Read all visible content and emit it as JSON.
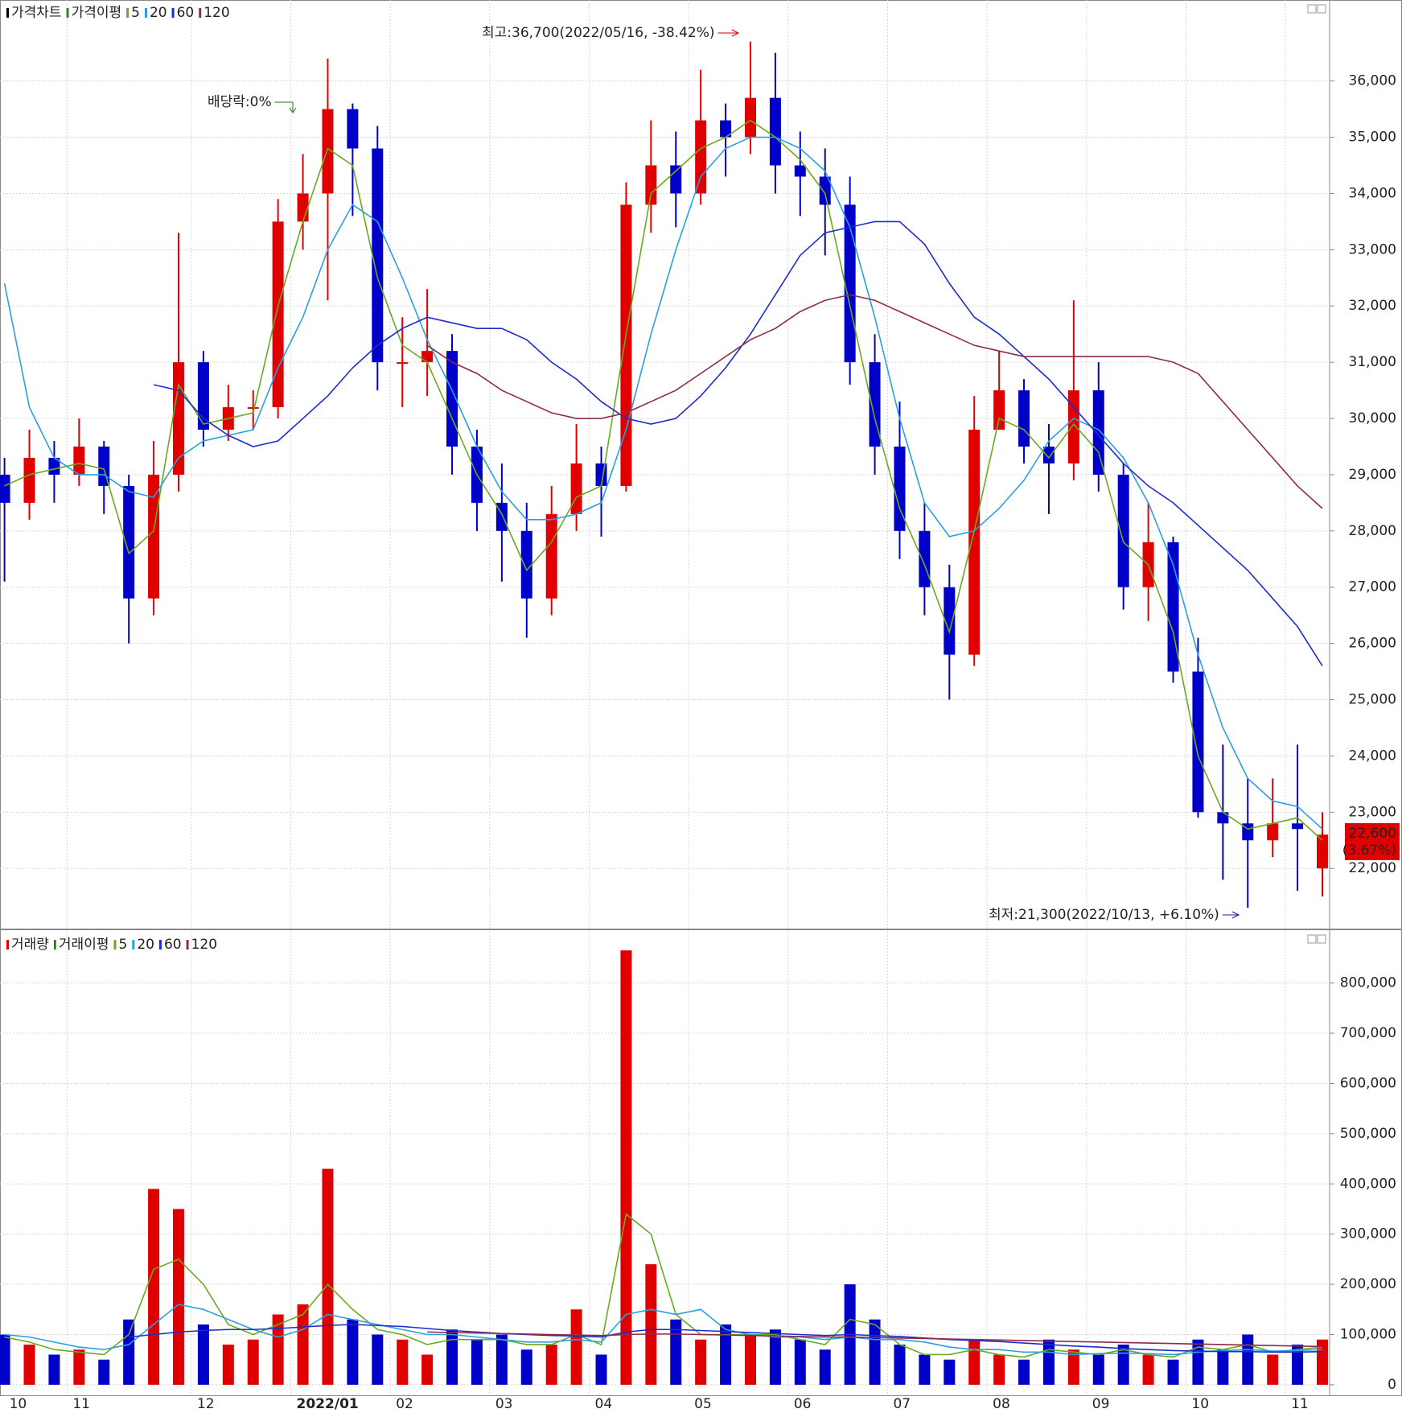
{
  "chart_data": [
    {
      "type": "candlestick",
      "title": "가격차트",
      "ma_title": "가격이평",
      "up_color": "#e00000",
      "down_color": "#0000c8",
      "open": [
        29000,
        28500,
        29300,
        29000,
        29500,
        28800,
        26800,
        29000,
        31000,
        29800,
        30200,
        30200,
        33500,
        34000,
        35500,
        34800,
        31000,
        31000,
        31200,
        29500,
        28500,
        28000,
        26800,
        28300,
        29200,
        28800,
        33800,
        34500,
        34000,
        35300,
        35000,
        35700,
        34500,
        34300,
        33800,
        31000,
        29500,
        28000,
        27000,
        25800,
        29800,
        30500,
        29500,
        29200,
        30500,
        29000,
        27000,
        27800,
        25500,
        23000,
        22800,
        22500,
        22800,
        22000
      ],
      "high": [
        29300,
        29800,
        29600,
        30000,
        29600,
        29000,
        29600,
        33300,
        31200,
        30600,
        30500,
        33900,
        34700,
        36400,
        35600,
        35200,
        31800,
        32300,
        31500,
        29800,
        29200,
        28500,
        28800,
        29900,
        29500,
        34200,
        35300,
        35100,
        36200,
        35600,
        36700,
        36500,
        35100,
        34800,
        34300,
        31500,
        30300,
        28500,
        27400,
        30400,
        31200,
        30700,
        29900,
        32100,
        31000,
        29200,
        28500,
        27900,
        26100,
        24200,
        23600,
        23600,
        24200,
        23000
      ],
      "low": [
        27100,
        28200,
        28500,
        28800,
        28300,
        26000,
        26500,
        28700,
        29500,
        29600,
        29800,
        30000,
        33000,
        32100,
        33600,
        30500,
        30200,
        30400,
        29000,
        28000,
        27100,
        26100,
        26500,
        28000,
        27900,
        28700,
        33300,
        33400,
        33800,
        34300,
        34700,
        34000,
        33600,
        32900,
        30600,
        29000,
        27500,
        26500,
        25000,
        25600,
        29800,
        29200,
        28300,
        28900,
        28700,
        26600,
        26400,
        25300,
        22900,
        21800,
        21300,
        22200,
        21600,
        21500
      ],
      "close": [
        28500,
        29300,
        29000,
        29500,
        28800,
        26800,
        29000,
        31000,
        29800,
        30200,
        30200,
        33500,
        34000,
        35500,
        34800,
        31000,
        31000,
        31200,
        29500,
        28500,
        28000,
        26800,
        28300,
        29200,
        28800,
        33800,
        34500,
        34000,
        35300,
        35000,
        35700,
        34500,
        34300,
        33800,
        31000,
        29500,
        28000,
        27000,
        25800,
        29800,
        30500,
        29500,
        29200,
        30500,
        29000,
        27000,
        27800,
        25500,
        23000,
        22800,
        22500,
        22800,
        22700,
        22600
      ],
      "series": [
        {
          "name": "5",
          "color": "#6aaa1e",
          "values": [
            28800,
            29000,
            29100,
            29200,
            29100,
            27600,
            28000,
            30600,
            29900,
            30000,
            30100,
            32000,
            33500,
            34800,
            34500,
            32500,
            31300,
            31000,
            30000,
            29000,
            28300,
            27300,
            27800,
            28600,
            28800,
            31500,
            34000,
            34400,
            34800,
            35000,
            35300,
            35000,
            34600,
            34000,
            32000,
            30000,
            28400,
            27400,
            26200,
            28000,
            30000,
            29800,
            29300,
            29900,
            29400,
            27800,
            27400,
            26200,
            24000,
            23000,
            22700,
            22800,
            22900,
            22500
          ]
        },
        {
          "name": "20",
          "color": "#2aa0e0",
          "values": [
            32400,
            30200,
            29300,
            29000,
            29000,
            28700,
            28600,
            29300,
            29600,
            29700,
            29800,
            30900,
            31800,
            33000,
            33800,
            33500,
            32500,
            31400,
            30500,
            29500,
            28700,
            28200,
            28200,
            28300,
            28500,
            29800,
            31500,
            33000,
            34300,
            34800,
            35000,
            35000,
            34800,
            34400,
            33400,
            31800,
            30000,
            28500,
            27900,
            28000,
            28400,
            28900,
            29600,
            30000,
            29800,
            29300,
            28500,
            27400,
            25800,
            24500,
            23600,
            23200,
            23100,
            22700
          ]
        },
        {
          "name": "60",
          "color": "#1c2ccc",
          "values": [
            null,
            null,
            null,
            null,
            null,
            null,
            30600,
            30500,
            30000,
            29700,
            29500,
            29600,
            30000,
            30400,
            30900,
            31300,
            31600,
            31800,
            31700,
            31600,
            31600,
            31400,
            31000,
            30700,
            30300,
            30000,
            29900,
            30000,
            30400,
            30900,
            31500,
            32200,
            32900,
            33300,
            33400,
            33500,
            33500,
            33100,
            32400,
            31800,
            31500,
            31100,
            30700,
            30200,
            29700,
            29200,
            28800,
            28500,
            28100,
            27700,
            27300,
            26800,
            26300,
            25600
          ]
        },
        {
          "name": "120",
          "color": "#8b2a4a",
          "values": [
            null,
            null,
            null,
            null,
            null,
            null,
            null,
            null,
            null,
            null,
            null,
            null,
            null,
            null,
            null,
            null,
            null,
            31300,
            31000,
            30800,
            30500,
            30300,
            30100,
            30000,
            30000,
            30100,
            30300,
            30500,
            30800,
            31100,
            31400,
            31600,
            31900,
            32100,
            32200,
            32100,
            31900,
            31700,
            31500,
            31300,
            31200,
            31100,
            31100,
            31100,
            31100,
            31100,
            31100,
            31000,
            30800,
            30300,
            29800,
            29300,
            28800,
            28400
          ]
        }
      ],
      "ylim": [
        20930,
        37440
      ],
      "yticks": [
        {
          "value": 22000,
          "label": "22,000"
        },
        {
          "value": 23000,
          "label": "23,000"
        },
        {
          "value": 24000,
          "label": "24,000"
        },
        {
          "value": 25000,
          "label": "25,000"
        },
        {
          "value": 26000,
          "label": "26,000"
        },
        {
          "value": 27000,
          "label": "27,000"
        },
        {
          "value": 28000,
          "label": "28,000"
        },
        {
          "value": 29000,
          "label": "29,000"
        },
        {
          "value": 30000,
          "label": "30,000"
        },
        {
          "value": 31000,
          "label": "31,000"
        },
        {
          "value": 32000,
          "label": "32,000"
        },
        {
          "value": 33000,
          "label": "33,000"
        },
        {
          "value": 34000,
          "label": "34,000"
        },
        {
          "value": 35000,
          "label": "35,000"
        },
        {
          "value": 36000,
          "label": "36,000"
        }
      ],
      "grid": true,
      "annotations": [
        "최고:36,700(2022/05/16, -38.42%)",
        "배당락:0%",
        "최저:21,300(2022/10/13, +6.10%)"
      ],
      "last_label": "22,600",
      "last_change": "(3.67%)"
    },
    {
      "type": "bar",
      "title": "거래량",
      "ma_title": "거래이평",
      "categories": [
        "10",
        null,
        null,
        "11",
        null,
        null,
        null,
        null,
        "12",
        null,
        null,
        null,
        "2022/01",
        null,
        null,
        null,
        "02",
        null,
        null,
        null,
        "03",
        null,
        null,
        null,
        "04",
        null,
        null,
        null,
        "05",
        null,
        null,
        null,
        "06",
        null,
        null,
        null,
        "07",
        null,
        null,
        null,
        "08",
        null,
        null,
        null,
        "09",
        null,
        null,
        null,
        "10",
        null,
        null,
        null,
        "11",
        null
      ],
      "values": [
        100000,
        80000,
        60000,
        70000,
        50000,
        130000,
        390000,
        350000,
        120000,
        80000,
        90000,
        140000,
        160000,
        430000,
        130000,
        100000,
        90000,
        60000,
        110000,
        90000,
        100000,
        70000,
        80000,
        150000,
        60000,
        865000,
        240000,
        130000,
        90000,
        120000,
        100000,
        110000,
        90000,
        70000,
        200000,
        130000,
        80000,
        60000,
        50000,
        90000,
        60000,
        50000,
        90000,
        70000,
        60000,
        80000,
        60000,
        50000,
        90000,
        70000,
        100000,
        60000,
        80000,
        90000
      ],
      "series": [
        {
          "name": "5",
          "color": "#6aaa1e",
          "values": [
            95000,
            85000,
            70000,
            65000,
            60000,
            100000,
            230000,
            250000,
            200000,
            120000,
            100000,
            120000,
            140000,
            200000,
            150000,
            110000,
            100000,
            80000,
            90000,
            90000,
            90000,
            80000,
            80000,
            100000,
            80000,
            340000,
            300000,
            140000,
            100000,
            100000,
            100000,
            100000,
            90000,
            80000,
            130000,
            120000,
            80000,
            60000,
            60000,
            70000,
            60000,
            55000,
            70000,
            65000,
            60000,
            70000,
            60000,
            55000,
            75000,
            70000,
            80000,
            65000,
            70000,
            75000
          ]
        },
        {
          "name": "20",
          "color": "#2aa0e0",
          "values": [
            100000,
            95000,
            85000,
            75000,
            70000,
            80000,
            120000,
            160000,
            150000,
            130000,
            110000,
            95000,
            110000,
            140000,
            130000,
            120000,
            110000,
            100000,
            100000,
            95000,
            90000,
            85000,
            85000,
            90000,
            85000,
            140000,
            150000,
            140000,
            150000,
            110000,
            100000,
            95000,
            95000,
            90000,
            95000,
            90000,
            90000,
            85000,
            75000,
            70000,
            70000,
            65000,
            65000,
            60000,
            62000,
            63000,
            62000,
            60000,
            65000,
            68000,
            70000,
            67000,
            68000,
            70000
          ]
        },
        {
          "name": "60",
          "color": "#1c2ccc",
          "values": [
            null,
            null,
            null,
            null,
            null,
            95000,
            100000,
            105000,
            108000,
            110000,
            110000,
            112000,
            115000,
            118000,
            120000,
            118000,
            116000,
            112000,
            108000,
            105000,
            102000,
            100000,
            98000,
            97000,
            95000,
            105000,
            110000,
            110000,
            108000,
            106000,
            104000,
            102000,
            100000,
            98000,
            100000,
            98000,
            96000,
            93000,
            90000,
            88000,
            86000,
            83000,
            80000,
            77000,
            75000,
            72000,
            70000,
            68000,
            67000,
            66000,
            66000,
            65000,
            65000,
            66000
          ]
        },
        {
          "name": "120",
          "color": "#8b2a4a",
          "values": [
            null,
            null,
            null,
            null,
            null,
            null,
            null,
            null,
            null,
            null,
            null,
            null,
            null,
            null,
            null,
            null,
            null,
            105000,
            104000,
            103000,
            102000,
            101000,
            100000,
            99000,
            98000,
            100000,
            101000,
            101000,
            100000,
            99000,
            98000,
            97000,
            96000,
            95000,
            95000,
            94000,
            93000,
            92000,
            91000,
            90000,
            89000,
            88000,
            87000,
            86000,
            85000,
            84000,
            83000,
            82000,
            81000,
            80000,
            79000,
            78000,
            77000,
            76000
          ]
        }
      ],
      "ylim": [
        -21000,
        902000
      ],
      "yticks": [
        0,
        {
          "value": 100000,
          "label": "100,000"
        },
        {
          "value": 200000,
          "label": "200,000"
        },
        {
          "value": 300000,
          "label": "300,000"
        },
        {
          "value": 400000,
          "label": "400,000"
        },
        {
          "value": 500000,
          "label": "500,000"
        },
        {
          "value": 600000,
          "label": "600,000"
        },
        {
          "value": 700000,
          "label": "700,000"
        },
        {
          "value": 800000,
          "label": "800,000"
        }
      ],
      "grid": true
    }
  ]
}
